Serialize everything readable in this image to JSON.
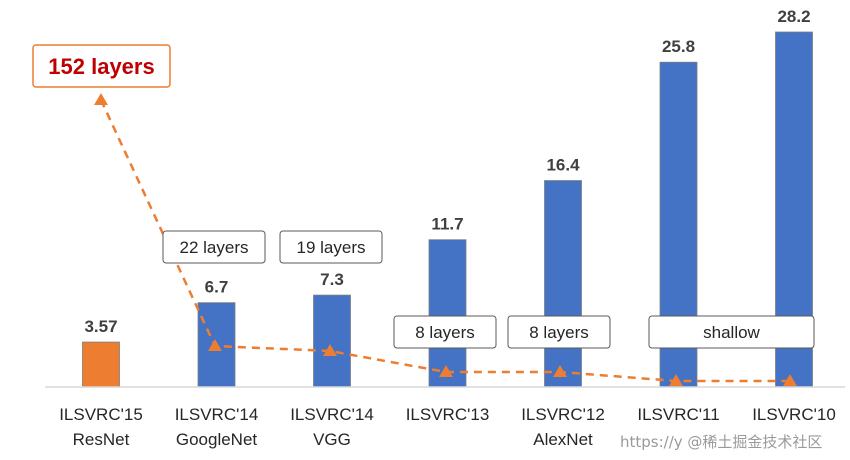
{
  "chart_data": {
    "type": "bar",
    "categories": [
      "ILSVRC'15\nResNet",
      "ILSVRC'14\nGoogleNet",
      "ILSVRC'14\nVGG",
      "ILSVRC'13",
      "ILSVRC'12\nAlexNet",
      "ILSVRC'11",
      "ILSVRC'10"
    ],
    "values": [
      3.57,
      6.7,
      7.3,
      11.7,
      16.4,
      25.8,
      28.2
    ],
    "value_labels": [
      "3.57",
      "6.7",
      "7.3",
      "11.7",
      "16.4",
      "25.8",
      "28.2"
    ],
    "bar_colors": [
      "#ed7d31",
      "#4472c4",
      "#4472c4",
      "#4472c4",
      "#4472c4",
      "#4472c4",
      "#4472c4"
    ],
    "ylim": [
      0,
      30
    ],
    "grid": false,
    "layers_series": {
      "type": "line",
      "style": "dashed",
      "marker": "triangle",
      "color": "#ed7d31",
      "labels": [
        "152 layers",
        "22 layers",
        "19 layers",
        "8 layers",
        "8 layers",
        "shallow"
      ]
    }
  },
  "watermark": "https://y @稀土掘金技术社区"
}
